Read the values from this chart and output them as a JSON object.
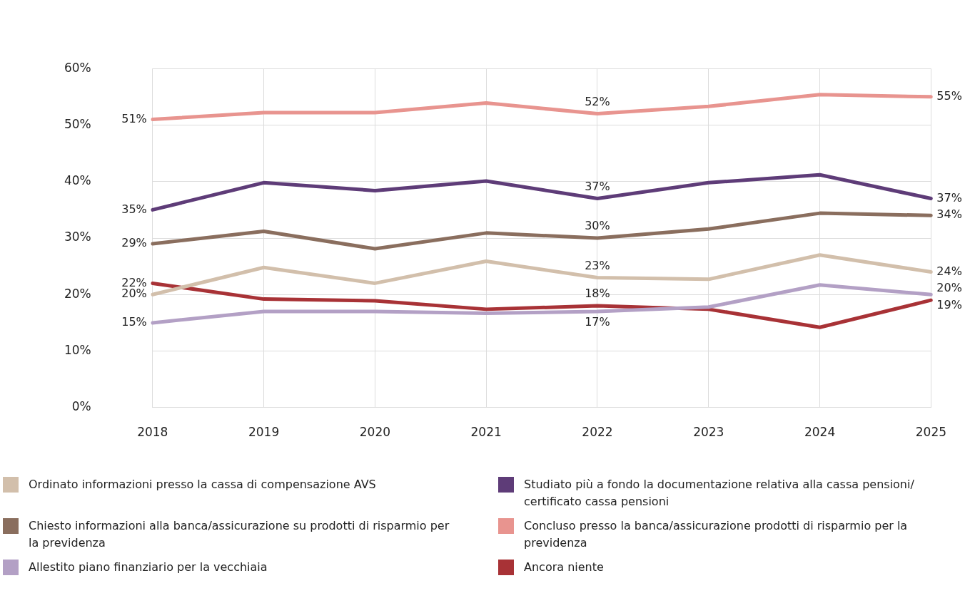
{
  "chart_data": {
    "type": "line",
    "categories": [
      "2018",
      "2019",
      "2020",
      "2021",
      "2022",
      "2023",
      "2024",
      "2025"
    ],
    "ylim": [
      0,
      60
    ],
    "yticks": [
      {
        "value": 0,
        "label": "0%"
      },
      {
        "value": 10,
        "label": "10%"
      },
      {
        "value": 20,
        "label": "20%"
      },
      {
        "value": 30,
        "label": "30%"
      },
      {
        "value": 40,
        "label": "40%"
      },
      {
        "value": 50,
        "label": "50%"
      },
      {
        "value": 60,
        "label": "60%"
      }
    ],
    "grid": true,
    "legend": "bottom",
    "marker": "none",
    "line_style": "solid",
    "series": [
      {
        "name": "Ordinato informazioni presso la cassa di compensazione AVS",
        "color": "#d2bfab",
        "values": [
          20,
          24.8,
          22.0,
          25.9,
          23,
          22.7,
          27.0,
          24
        ],
        "value_labels": [
          "20%",
          null,
          null,
          null,
          "23%",
          null,
          null,
          "24%"
        ]
      },
      {
        "name": "Chiesto informazioni alla banca/assicurazione su prodotti di risparmio per la previdenza",
        "color": "#8a6e5e",
        "values": [
          29,
          31.2,
          28.1,
          30.9,
          30,
          31.6,
          34.4,
          34
        ],
        "value_labels": [
          "29%",
          null,
          null,
          null,
          "30%",
          null,
          null,
          "34%"
        ]
      },
      {
        "name": "Allestito piano finanziario per la vecchiaia",
        "color": "#b3a0c5",
        "values": [
          15,
          17.0,
          17.0,
          16.7,
          17,
          17.8,
          21.7,
          20
        ],
        "value_labels": [
          "15%",
          null,
          null,
          null,
          "17%",
          null,
          null,
          "20%"
        ]
      },
      {
        "name": "Studiato più a fondo la documentazione relativa alla cassa pensioni/ certificato cassa pensioni",
        "color": "#5e3c78",
        "values": [
          35,
          39.8,
          38.4,
          40.1,
          37,
          39.8,
          41.2,
          37
        ],
        "value_labels": [
          "35%",
          null,
          null,
          null,
          "37%",
          null,
          null,
          "37%"
        ]
      },
      {
        "name": "Concluso presso la banca/assicurazione prodotti di risparmio per la previdenza",
        "color": "#e8948f",
        "values": [
          51,
          52.2,
          52.2,
          53.9,
          52,
          53.3,
          55.4,
          55
        ],
        "value_labels": [
          "51%",
          null,
          null,
          null,
          "52%",
          null,
          null,
          "55%"
        ]
      },
      {
        "name": "Ancora niente",
        "color": "#a83236",
        "values": [
          22,
          19.2,
          18.9,
          17.4,
          18,
          17.4,
          14.2,
          19
        ],
        "value_labels": [
          "22%",
          null,
          null,
          null,
          "18%",
          null,
          null,
          "19%"
        ]
      }
    ]
  }
}
